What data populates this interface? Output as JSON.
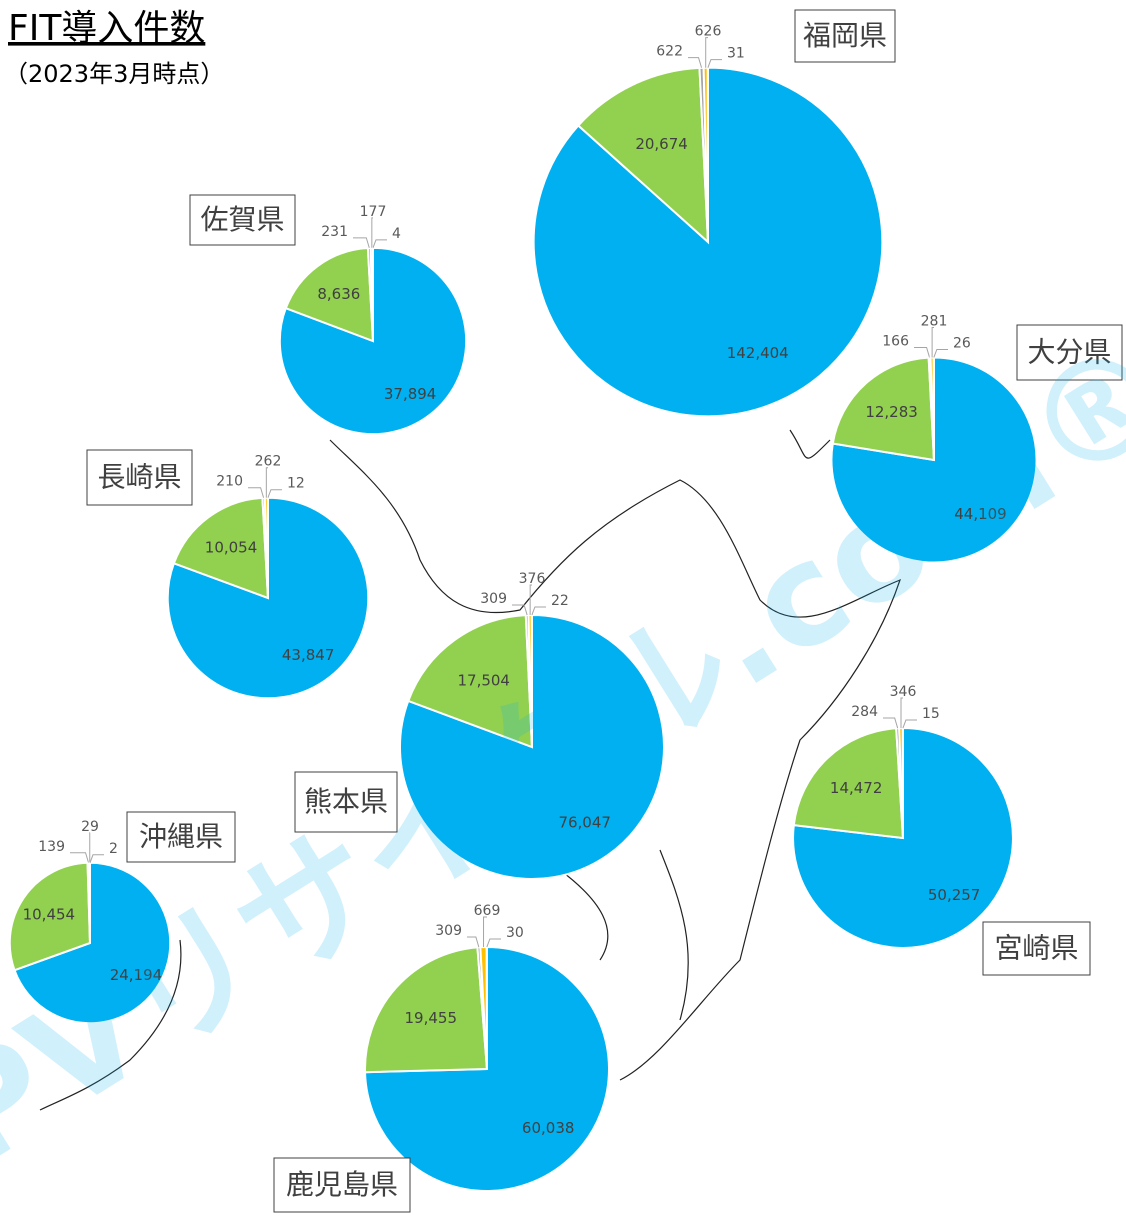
{
  "title": "FIT導入件数",
  "subtitle": "（2023年3月時点）",
  "watermark": "PVリサイクル.com®",
  "chart_data": [
    {
      "type": "pie",
      "title": "福岡県",
      "values": [
        142404,
        20674,
        622,
        626,
        31
      ],
      "value_labels": [
        "142,404",
        "20,674",
        "622",
        "626",
        "31"
      ],
      "colors": [
        "#00b0f0",
        "#92d050",
        "#a5a5a5",
        "#ffc000",
        "#ed7d31"
      ]
    },
    {
      "type": "pie",
      "title": "佐賀県",
      "values": [
        37894,
        8636,
        231,
        177,
        4
      ],
      "value_labels": [
        "37,894",
        "8,636",
        "231",
        "177",
        "4"
      ],
      "colors": [
        "#00b0f0",
        "#92d050",
        "#a5a5a5",
        "#ffc000",
        "#ed7d31"
      ]
    },
    {
      "type": "pie",
      "title": "長崎県",
      "values": [
        43847,
        10054,
        210,
        262,
        12
      ],
      "value_labels": [
        "43,847",
        "10,054",
        "210",
        "262",
        "12"
      ],
      "colors": [
        "#00b0f0",
        "#92d050",
        "#a5a5a5",
        "#ffc000",
        "#ed7d31"
      ]
    },
    {
      "type": "pie",
      "title": "大分県",
      "values": [
        44109,
        12283,
        166,
        281,
        26
      ],
      "value_labels": [
        "44,109",
        "12,283",
        "166",
        "281",
        "26"
      ],
      "colors": [
        "#00b0f0",
        "#92d050",
        "#a5a5a5",
        "#ffc000",
        "#ed7d31"
      ]
    },
    {
      "type": "pie",
      "title": "熊本県",
      "values": [
        76047,
        17504,
        309,
        376,
        22
      ],
      "value_labels": [
        "76,047",
        "17,504",
        "309",
        "376",
        "22"
      ],
      "colors": [
        "#00b0f0",
        "#92d050",
        "#a5a5a5",
        "#ffc000",
        "#ed7d31"
      ]
    },
    {
      "type": "pie",
      "title": "宮崎県",
      "values": [
        50257,
        14472,
        284,
        346,
        15
      ],
      "value_labels": [
        "50,257",
        "14,472",
        "284",
        "346",
        "15"
      ],
      "colors": [
        "#00b0f0",
        "#92d050",
        "#a5a5a5",
        "#ffc000",
        "#ed7d31"
      ]
    },
    {
      "type": "pie",
      "title": "沖縄県",
      "values": [
        24194,
        10454,
        139,
        29,
        2
      ],
      "value_labels": [
        "24,194",
        "10,454",
        "139",
        "29",
        "2"
      ],
      "colors": [
        "#00b0f0",
        "#92d050",
        "#a5a5a5",
        "#ffc000",
        "#ed7d31"
      ]
    },
    {
      "type": "pie",
      "title": "鹿児島県",
      "values": [
        60038,
        19455,
        309,
        669,
        30
      ],
      "value_labels": [
        "60,038",
        "19,455",
        "309",
        "669",
        "30"
      ],
      "colors": [
        "#00b0f0",
        "#92d050",
        "#a5a5a5",
        "#ffc000",
        "#ed7d31"
      ]
    }
  ]
}
